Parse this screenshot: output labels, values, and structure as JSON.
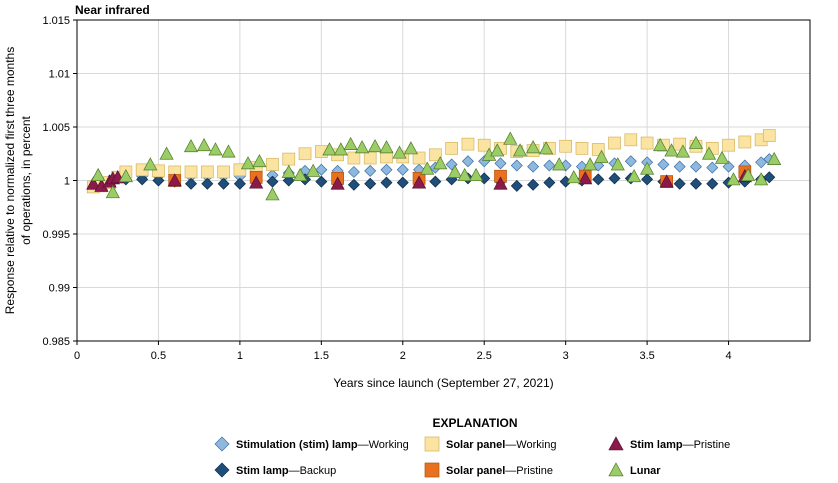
{
  "chart_data": {
    "type": "scatter",
    "title": "Near infrared",
    "xlabel": "Years since launch (September 27, 2021)",
    "ylabel_lines": [
      "Response relative to normalized first three months",
      "of operations, in percent"
    ],
    "xlim": [
      0,
      4.5
    ],
    "ylim": [
      0.985,
      1.015
    ],
    "x_ticks": [
      0,
      0.5,
      1,
      1.5,
      2,
      2.5,
      3,
      3.5,
      4
    ],
    "x_tick_labels": [
      "0",
      "0.5",
      "1",
      "1.5",
      "2",
      "2.5",
      "3",
      "3.5",
      "4"
    ],
    "y_ticks": [
      0.985,
      0.99,
      0.995,
      1,
      1.005,
      1.01,
      1.015
    ],
    "y_tick_labels": [
      "0.985",
      "0.99",
      "0.995",
      "1",
      "1.005",
      "1.01",
      "1.015"
    ],
    "grid": true,
    "legend_title": "EXPLANATION",
    "legend_position": "bottom",
    "series": [
      {
        "key": "stim_working",
        "marker": "diamond",
        "color": "#8fb8de",
        "stroke": "#3a6ea5",
        "legend_bold": "Stimulation (stim) lamp",
        "legend_normal": "—Working",
        "points": [
          [
            0.1,
            0.9997
          ],
          [
            0.15,
            0.9998
          ],
          [
            0.2,
            1.0
          ],
          [
            0.3,
            1.0003
          ],
          [
            0.4,
            1.0004
          ],
          [
            0.5,
            1.0004
          ],
          [
            0.6,
            1.0004
          ],
          [
            0.7,
            1.0004
          ],
          [
            0.8,
            1.0004
          ],
          [
            0.9,
            1.0004
          ],
          [
            1.0,
            1.0004
          ],
          [
            1.1,
            1.0004
          ],
          [
            1.2,
            1.0005
          ],
          [
            1.3,
            1.0007
          ],
          [
            1.4,
            1.0009
          ],
          [
            1.5,
            1.001
          ],
          [
            1.6,
            1.0009
          ],
          [
            1.7,
            1.0008
          ],
          [
            1.8,
            1.0009
          ],
          [
            1.9,
            1.001
          ],
          [
            2.0,
            1.001
          ],
          [
            2.1,
            1.001
          ],
          [
            2.2,
            1.0012
          ],
          [
            2.3,
            1.0015
          ],
          [
            2.4,
            1.0018
          ],
          [
            2.5,
            1.0018
          ],
          [
            2.6,
            1.0016
          ],
          [
            2.7,
            1.0014
          ],
          [
            2.8,
            1.0013
          ],
          [
            2.9,
            1.0014
          ],
          [
            3.0,
            1.0014
          ],
          [
            3.1,
            1.0013
          ],
          [
            3.2,
            1.0014
          ],
          [
            3.3,
            1.0016
          ],
          [
            3.4,
            1.0018
          ],
          [
            3.5,
            1.0017
          ],
          [
            3.6,
            1.0015
          ],
          [
            3.7,
            1.0013
          ],
          [
            3.8,
            1.0013
          ],
          [
            3.9,
            1.0012
          ],
          [
            4.0,
            1.0013
          ],
          [
            4.1,
            1.0014
          ],
          [
            4.2,
            1.0017
          ],
          [
            4.25,
            1.002
          ]
        ]
      },
      {
        "key": "stim_backup",
        "marker": "diamond",
        "color": "#1f4e79",
        "stroke": "#0d2a4a",
        "legend_bold": "Stim lamp",
        "legend_normal": "—Backup",
        "points": [
          [
            0.1,
            0.9996
          ],
          [
            0.15,
            0.9997
          ],
          [
            0.2,
            0.9999
          ],
          [
            0.3,
            1.0001
          ],
          [
            0.4,
            1.0001
          ],
          [
            0.5,
            1.0
          ],
          [
            0.6,
            0.9999
          ],
          [
            0.7,
            0.9997
          ],
          [
            0.8,
            0.9997
          ],
          [
            0.9,
            0.9997
          ],
          [
            1.0,
            0.9997
          ],
          [
            1.1,
            0.9998
          ],
          [
            1.2,
            0.9999
          ],
          [
            1.3,
            1.0
          ],
          [
            1.4,
            1.0001
          ],
          [
            1.5,
            0.9999
          ],
          [
            1.6,
            0.9997
          ],
          [
            1.7,
            0.9996
          ],
          [
            1.8,
            0.9997
          ],
          [
            1.9,
            0.9998
          ],
          [
            2.0,
            0.9998
          ],
          [
            2.1,
            0.9998
          ],
          [
            2.2,
            0.9999
          ],
          [
            2.3,
            1.0001
          ],
          [
            2.4,
            1.0002
          ],
          [
            2.5,
            1.0002
          ],
          [
            2.6,
            0.9999
          ],
          [
            2.7,
            0.9995
          ],
          [
            2.8,
            0.9996
          ],
          [
            2.9,
            0.9998
          ],
          [
            3.0,
            0.9999
          ],
          [
            3.1,
            1.0
          ],
          [
            3.2,
            1.0001
          ],
          [
            3.3,
            1.0002
          ],
          [
            3.4,
            1.0002
          ],
          [
            3.5,
            1.0001
          ],
          [
            3.6,
            0.9999
          ],
          [
            3.7,
            0.9997
          ],
          [
            3.8,
            0.9997
          ],
          [
            3.9,
            0.9997
          ],
          [
            4.0,
            0.9998
          ],
          [
            4.1,
            0.9999
          ],
          [
            4.2,
            1.0001
          ],
          [
            4.25,
            1.0003
          ]
        ]
      },
      {
        "key": "solar_working",
        "marker": "square",
        "color": "#fbe3a1",
        "stroke": "#d4b45c",
        "legend_bold": "Solar panel",
        "legend_normal": "—Working",
        "points": [
          [
            0.1,
            0.9994
          ],
          [
            0.15,
            0.9995
          ],
          [
            0.2,
            0.9998
          ],
          [
            0.25,
            1.0003
          ],
          [
            0.3,
            1.0008
          ],
          [
            0.4,
            1.001
          ],
          [
            0.5,
            1.0009
          ],
          [
            0.6,
            1.0008
          ],
          [
            0.7,
            1.0008
          ],
          [
            0.8,
            1.0008
          ],
          [
            0.9,
            1.0008
          ],
          [
            1.0,
            1.001
          ],
          [
            1.1,
            1.0012
          ],
          [
            1.2,
            1.0015
          ],
          [
            1.3,
            1.002
          ],
          [
            1.4,
            1.0025
          ],
          [
            1.5,
            1.0027
          ],
          [
            1.6,
            1.0024
          ],
          [
            1.7,
            1.0021
          ],
          [
            1.8,
            1.0021
          ],
          [
            1.9,
            1.0022
          ],
          [
            2.0,
            1.0022
          ],
          [
            2.1,
            1.0021
          ],
          [
            2.2,
            1.0024
          ],
          [
            2.3,
            1.003
          ],
          [
            2.4,
            1.0034
          ],
          [
            2.5,
            1.0033
          ],
          [
            2.6,
            1.003
          ],
          [
            2.7,
            1.0027
          ],
          [
            2.8,
            1.0028
          ],
          [
            2.9,
            1.003
          ],
          [
            3.0,
            1.0032
          ],
          [
            3.1,
            1.003
          ],
          [
            3.2,
            1.0029
          ],
          [
            3.3,
            1.0035
          ],
          [
            3.4,
            1.0038
          ],
          [
            3.5,
            1.0035
          ],
          [
            3.6,
            1.0033
          ],
          [
            3.7,
            1.0034
          ],
          [
            3.8,
            1.0032
          ],
          [
            3.9,
            1.003
          ],
          [
            4.0,
            1.0033
          ],
          [
            4.1,
            1.0036
          ],
          [
            4.2,
            1.0038
          ],
          [
            4.25,
            1.0042
          ]
        ]
      },
      {
        "key": "solar_pristine",
        "marker": "square",
        "color": "#e8711f",
        "stroke": "#b3520f",
        "legend_bold": "Solar panel",
        "legend_normal": "—Pristine",
        "points": [
          [
            0.6,
            1.0
          ],
          [
            1.1,
            1.0003
          ],
          [
            1.6,
            1.0002
          ],
          [
            2.1,
            1.0002
          ],
          [
            2.6,
            1.0004
          ],
          [
            3.12,
            1.0004
          ],
          [
            3.62,
            0.9999
          ],
          [
            4.1,
            1.0008
          ]
        ]
      },
      {
        "key": "stim_pristine",
        "marker": "triangle",
        "color": "#8b1a4a",
        "stroke": "#5a0f30",
        "legend_bold": "Stim lamp",
        "legend_normal": "—Pristine",
        "points": [
          [
            0.1,
            0.9997
          ],
          [
            0.15,
            0.9995
          ],
          [
            0.2,
            0.9999
          ],
          [
            0.22,
            1.0002
          ],
          [
            0.25,
            1.0003
          ],
          [
            0.6,
            1.0
          ],
          [
            1.1,
            0.9998
          ],
          [
            1.6,
            0.9997
          ],
          [
            2.1,
            0.9998
          ],
          [
            2.6,
            0.9997
          ],
          [
            3.12,
            1.0002
          ],
          [
            3.62,
            0.9999
          ],
          [
            4.1,
            1.0004
          ]
        ]
      },
      {
        "key": "lunar",
        "marker": "triangle",
        "color": "#9ccc65",
        "stroke": "#4f7a28",
        "legend_bold": "Lunar",
        "legend_normal": "",
        "points": [
          [
            0.13,
            1.0005
          ],
          [
            0.22,
            0.9989
          ],
          [
            0.3,
            1.0004
          ],
          [
            0.45,
            1.0015
          ],
          [
            0.55,
            1.0025
          ],
          [
            0.7,
            1.0032
          ],
          [
            0.78,
            1.0033
          ],
          [
            0.85,
            1.0029
          ],
          [
            0.93,
            1.0027
          ],
          [
            1.05,
            1.0016
          ],
          [
            1.12,
            1.0018
          ],
          [
            1.2,
            0.9987
          ],
          [
            1.3,
            1.0008
          ],
          [
            1.37,
            1.0005
          ],
          [
            1.45,
            1.0009
          ],
          [
            1.55,
            1.0029
          ],
          [
            1.62,
            1.0029
          ],
          [
            1.68,
            1.0034
          ],
          [
            1.75,
            1.0031
          ],
          [
            1.83,
            1.0032
          ],
          [
            1.9,
            1.0031
          ],
          [
            1.98,
            1.0026
          ],
          [
            2.05,
            1.003
          ],
          [
            2.15,
            1.0011
          ],
          [
            2.23,
            1.0016
          ],
          [
            2.32,
            1.0008
          ],
          [
            2.38,
            1.0005
          ],
          [
            2.45,
            1.0005
          ],
          [
            2.53,
            1.0024
          ],
          [
            2.58,
            1.0028
          ],
          [
            2.66,
            1.0039
          ],
          [
            2.72,
            1.0028
          ],
          [
            2.8,
            1.0031
          ],
          [
            2.88,
            1.003
          ],
          [
            2.96,
            1.0015
          ],
          [
            3.05,
            1.0003
          ],
          [
            3.15,
            1.0015
          ],
          [
            3.22,
            1.0022
          ],
          [
            3.32,
            1.0015
          ],
          [
            3.42,
            1.0004
          ],
          [
            3.5,
            1.0011
          ],
          [
            3.58,
            1.0033
          ],
          [
            3.65,
            1.0028
          ],
          [
            3.72,
            1.0027
          ],
          [
            3.8,
            1.0035
          ],
          [
            3.88,
            1.0025
          ],
          [
            3.96,
            1.0021
          ],
          [
            4.03,
            1.0001
          ],
          [
            4.12,
            1.0005
          ],
          [
            4.2,
            1.0001
          ],
          [
            4.28,
            1.002
          ]
        ]
      }
    ],
    "legend_layout": [
      [
        "stim_working",
        "solar_working",
        "stim_pristine"
      ],
      [
        "stim_backup",
        "solar_pristine",
        "lunar"
      ]
    ]
  }
}
